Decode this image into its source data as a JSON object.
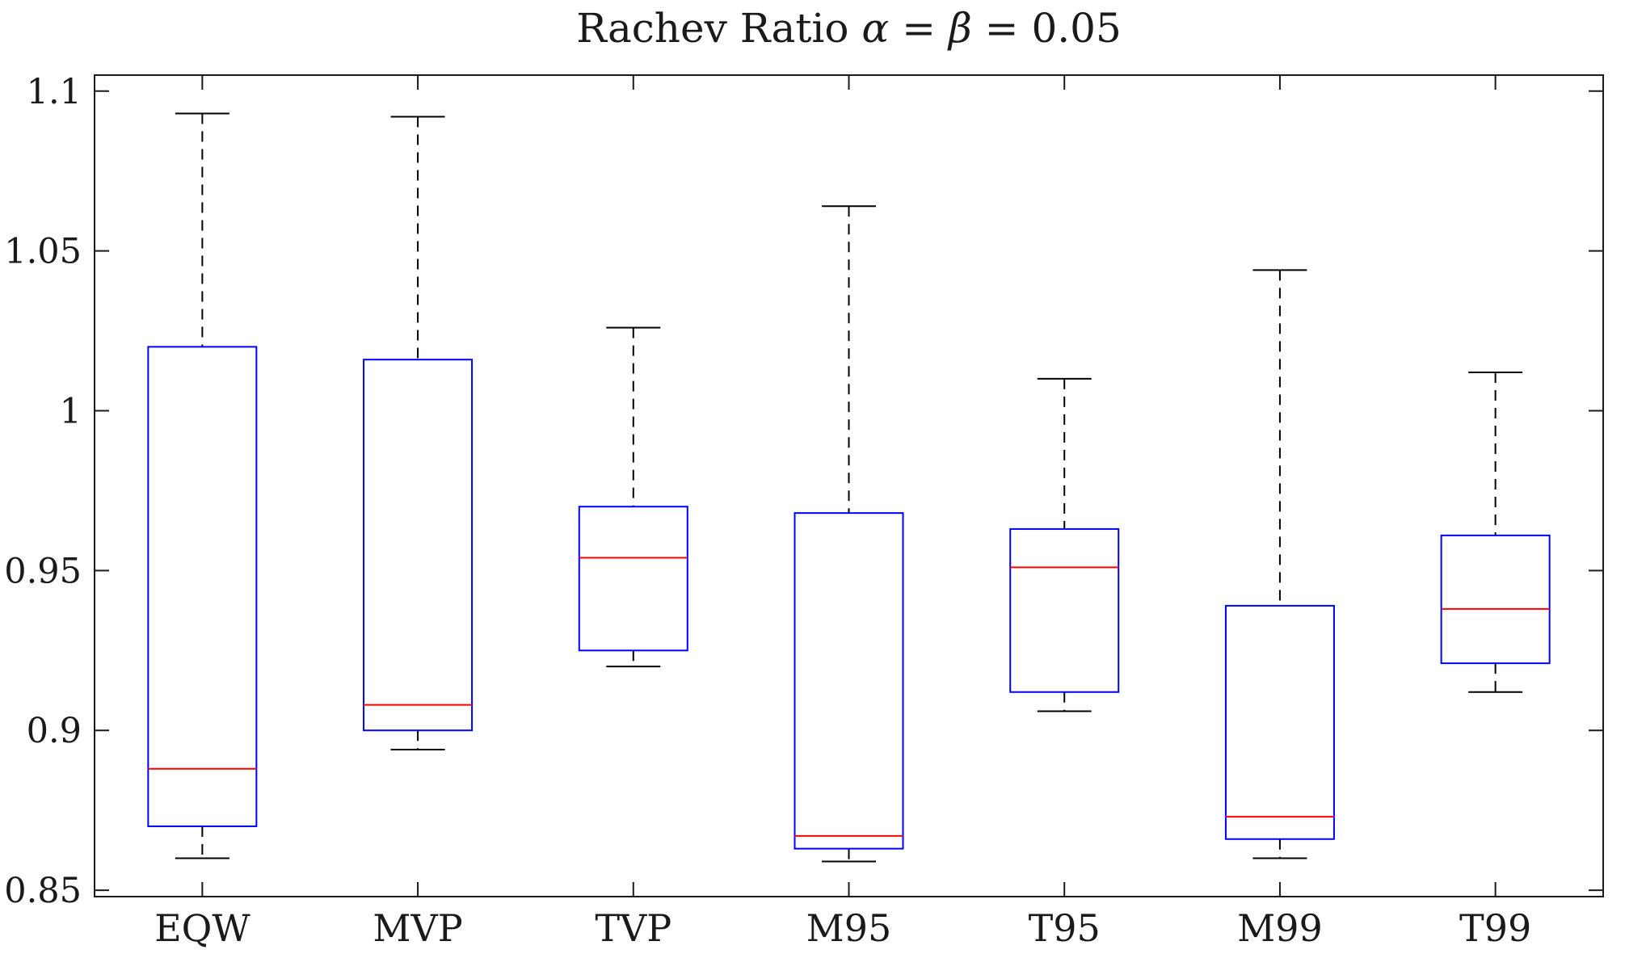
{
  "chart_data": {
    "type": "boxplot",
    "title": "Rachev Ratio α = β = 0.05",
    "title_parts": [
      {
        "text": "Rachev Ratio ",
        "italic": false
      },
      {
        "text": "α",
        "italic": true
      },
      {
        "text": " = ",
        "italic": false
      },
      {
        "text": "β",
        "italic": true
      },
      {
        "text": " = 0.05",
        "italic": false
      }
    ],
    "xlabel": "",
    "ylabel": "",
    "categories": [
      "EQW",
      "MVP",
      "TVP",
      "M95",
      "T95",
      "M99",
      "T99"
    ],
    "series": [
      {
        "name": "EQW",
        "whisker_low": 0.86,
        "q1": 0.87,
        "median": 0.888,
        "q3": 1.02,
        "whisker_high": 1.093
      },
      {
        "name": "MVP",
        "whisker_low": 0.894,
        "q1": 0.9,
        "median": 0.908,
        "q3": 1.016,
        "whisker_high": 1.092
      },
      {
        "name": "TVP",
        "whisker_low": 0.92,
        "q1": 0.925,
        "median": 0.954,
        "q3": 0.97,
        "whisker_high": 1.026
      },
      {
        "name": "M95",
        "whisker_low": 0.859,
        "q1": 0.863,
        "median": 0.867,
        "q3": 0.968,
        "whisker_high": 1.064
      },
      {
        "name": "T95",
        "whisker_low": 0.906,
        "q1": 0.912,
        "median": 0.951,
        "q3": 0.963,
        "whisker_high": 1.01
      },
      {
        "name": "M99",
        "whisker_low": 0.86,
        "q1": 0.866,
        "median": 0.873,
        "q3": 0.939,
        "whisker_high": 1.044
      },
      {
        "name": "T99",
        "whisker_low": 0.912,
        "q1": 0.921,
        "median": 0.938,
        "q3": 0.961,
        "whisker_high": 1.012
      }
    ],
    "ylim": [
      0.848,
      1.105
    ],
    "yticks": [
      {
        "value": 0.85,
        "label": "0.85"
      },
      {
        "value": 0.9,
        "label": "0.9"
      },
      {
        "value": 0.95,
        "label": "0.95"
      },
      {
        "value": 1.0,
        "label": "1"
      },
      {
        "value": 1.05,
        "label": "1.05"
      },
      {
        "value": 1.1,
        "label": "1.1"
      }
    ],
    "grid": false,
    "legend": "none",
    "colors": {
      "box": "#0000ff",
      "median": "#ff0000",
      "whisker": "#000000",
      "axis": "#1a1a1a",
      "background": "#ffffff"
    }
  }
}
